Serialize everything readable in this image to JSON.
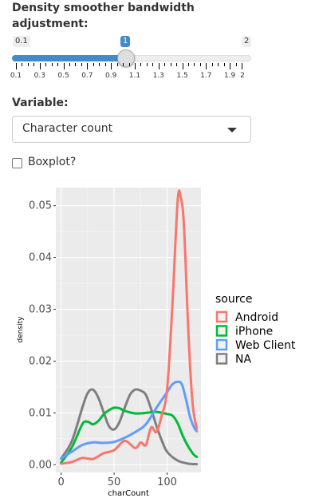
{
  "slider": {
    "label": "Density smoother bandwidth adjustment:",
    "min": "0.1",
    "max": "2",
    "value": "1",
    "ticks": [
      "0.1",
      "0.3",
      "0.5",
      "0.7",
      "0.9",
      "1.1",
      "1.3",
      "1.5",
      "1.7",
      "1.9",
      "2"
    ]
  },
  "variable": {
    "label": "Variable:",
    "selected": "Character count"
  },
  "boxplot": {
    "label": "Boxplot?",
    "checked": false
  },
  "chart_data": {
    "type": "line",
    "xlabel": "charCount",
    "ylabel": "density",
    "xlim": [
      -5,
      132
    ],
    "ylim": [
      -0.0015,
      0.0535
    ],
    "xticks": [
      "0",
      "50",
      "100"
    ],
    "yticks": [
      "0.00",
      "0.01",
      "0.02",
      "0.03",
      "0.04",
      "0.05"
    ],
    "grid": true,
    "legend_title": "source",
    "legend_position": "right",
    "series": [
      {
        "name": "Android",
        "color": "#F8766D",
        "x": [
          0,
          10,
          20,
          30,
          40,
          50,
          60,
          70,
          75,
          80,
          85,
          90,
          95,
          100,
          105,
          110,
          113,
          116,
          120,
          124,
          128
        ],
        "y": [
          0.0002,
          0.0005,
          0.0013,
          0.0011,
          0.0022,
          0.0028,
          0.0046,
          0.0032,
          0.0043,
          0.0038,
          0.0072,
          0.0063,
          0.0095,
          0.0145,
          0.0305,
          0.051,
          0.0515,
          0.046,
          0.026,
          0.012,
          0.007
        ]
      },
      {
        "name": "iPhone",
        "color": "#00BA38",
        "x": [
          0,
          10,
          20,
          25,
          30,
          35,
          40,
          45,
          50,
          55,
          60,
          70,
          80,
          90,
          100,
          105,
          110,
          115,
          120,
          125,
          128
        ],
        "y": [
          0.0004,
          0.0033,
          0.0078,
          0.0083,
          0.0078,
          0.0084,
          0.0097,
          0.0105,
          0.011,
          0.0109,
          0.0104,
          0.0099,
          0.01,
          0.0102,
          0.0098,
          0.0095,
          0.008,
          0.0055,
          0.0035,
          0.002,
          0.0015
        ]
      },
      {
        "name": "Web Client",
        "color": "#619CFF",
        "x": [
          0,
          10,
          20,
          30,
          40,
          50,
          60,
          70,
          80,
          90,
          100,
          105,
          110,
          114,
          118,
          122,
          126,
          128
        ],
        "y": [
          0.0012,
          0.0025,
          0.0038,
          0.0043,
          0.0042,
          0.0044,
          0.0052,
          0.0063,
          0.0078,
          0.011,
          0.014,
          0.0155,
          0.016,
          0.0155,
          0.0125,
          0.009,
          0.007,
          0.0065
        ]
      },
      {
        "name": "NA",
        "color": "#7F7F7F",
        "x": [
          0,
          10,
          20,
          25,
          30,
          35,
          40,
          45,
          50,
          55,
          60,
          65,
          70,
          75,
          80,
          85,
          90,
          95,
          100,
          110,
          120,
          128
        ],
        "y": [
          0.0012,
          0.0045,
          0.011,
          0.0138,
          0.0145,
          0.013,
          0.0102,
          0.0075,
          0.0068,
          0.0082,
          0.011,
          0.0135,
          0.0145,
          0.0143,
          0.0135,
          0.0107,
          0.0075,
          0.0047,
          0.0025,
          0.0008,
          0.0002,
          0.0001
        ]
      }
    ]
  }
}
